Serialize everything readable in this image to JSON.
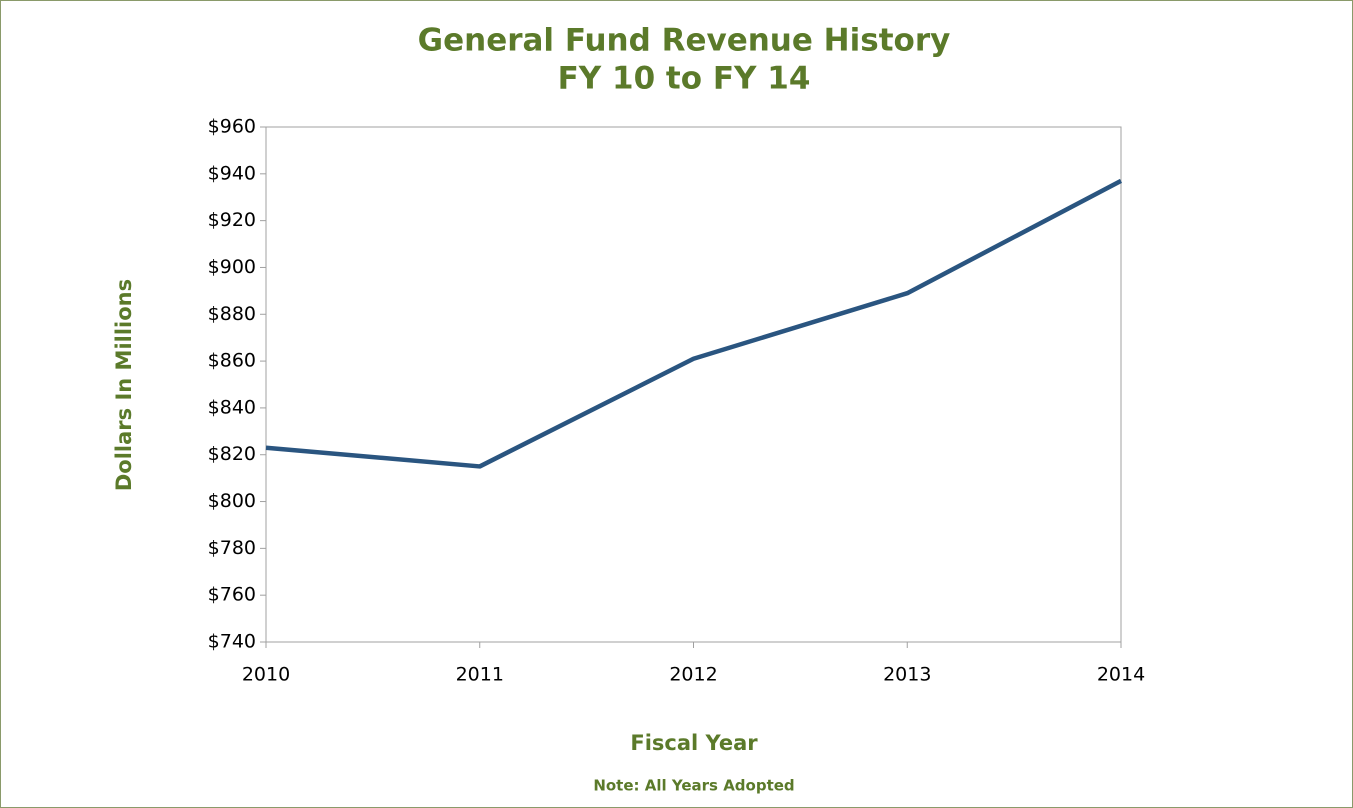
{
  "chart_data": {
    "type": "line",
    "title": "General Fund Revenue History",
    "subtitle": "FY 10 to FY 14",
    "y_label": "Dollars In Millions",
    "x_label": "Fiscal Year",
    "note": "Note: All Years Adopted",
    "x": [
      2010,
      2011,
      2012,
      2013,
      2014
    ],
    "xlim": [
      2010,
      2014
    ],
    "xticks": [
      2010,
      2011,
      2012,
      2013,
      2014
    ],
    "ylim": [
      740,
      960
    ],
    "yticks": [
      {
        "value": 740,
        "label": "$740"
      },
      {
        "value": 760,
        "label": "$760"
      },
      {
        "value": 780,
        "label": "$780"
      },
      {
        "value": 800,
        "label": "$800"
      },
      {
        "value": 820,
        "label": "$820"
      },
      {
        "value": 840,
        "label": "$840"
      },
      {
        "value": 860,
        "label": "$860"
      },
      {
        "value": 880,
        "label": "$880"
      },
      {
        "value": 900,
        "label": "$900"
      },
      {
        "value": 920,
        "label": "$920"
      },
      {
        "value": 940,
        "label": "$940"
      },
      {
        "value": 960,
        "label": "$960"
      }
    ],
    "grid": false,
    "series": [
      {
        "name": "General Fund Revenue",
        "color": "#2a5580",
        "values": [
          823,
          815,
          861,
          889,
          937
        ]
      }
    ]
  }
}
